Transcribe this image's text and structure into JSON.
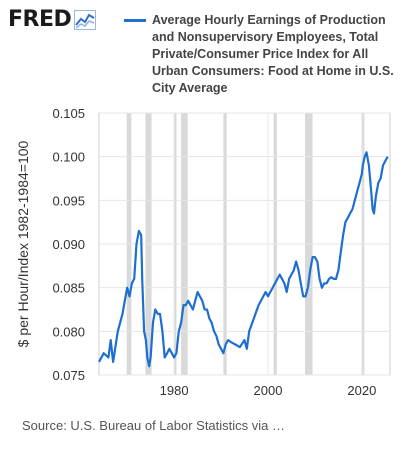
{
  "logo": {
    "text": "FRED",
    "mark_icon": "line-chart-icon"
  },
  "legend": {
    "label": "Average Hourly Earnings of Production and Nonsupervisory Employees, Total Private/Consumer Price Index for All Urban Consumers: Food at Home in U.S. City Average",
    "color": "#1f6fd1"
  },
  "source": "Source: U.S. Bureau of Labor Statistics via …",
  "chart_data": {
    "type": "line",
    "title": "",
    "ylabel": "$ per Hour/Index 1982-1984=100",
    "xlabel": "",
    "xlim": [
      1964,
      2026
    ],
    "ylim": [
      0.075,
      0.105
    ],
    "x_ticks": [
      1980,
      2000,
      2020
    ],
    "x_tick_labels": [
      "1980",
      "2000",
      "2020"
    ],
    "y_ticks": [
      0.075,
      0.08,
      0.085,
      0.09,
      0.095,
      0.1,
      0.105
    ],
    "y_tick_labels": [
      "0.075",
      "0.080",
      "0.085",
      "0.090",
      "0.095",
      "0.100",
      "0.105"
    ],
    "grid": true,
    "recessions": [
      [
        1969.9,
        1970.9
      ],
      [
        1973.9,
        1975.2
      ],
      [
        1980.0,
        1980.5
      ],
      [
        1981.5,
        1982.9
      ],
      [
        1990.5,
        1991.2
      ],
      [
        2001.2,
        2001.9
      ],
      [
        2007.9,
        2009.5
      ],
      [
        2020.1,
        2020.4
      ]
    ],
    "series": [
      {
        "color": "#1f6fd1",
        "x": [
          1964.0,
          1965.0,
          1966.0,
          1966.5,
          1967.0,
          1968.0,
          1969.0,
          1969.5,
          1970.0,
          1970.5,
          1971.0,
          1971.5,
          1972.0,
          1972.5,
          1973.0,
          1973.2,
          1973.6,
          1974.0,
          1974.3,
          1974.7,
          1975.0,
          1975.5,
          1976.0,
          1976.5,
          1977.0,
          1977.5,
          1978.0,
          1978.5,
          1979.0,
          1979.5,
          1980.0,
          1980.5,
          1981.0,
          1981.5,
          1982.0,
          1982.5,
          1983.0,
          1983.5,
          1984.0,
          1984.5,
          1985.0,
          1985.5,
          1986.0,
          1986.5,
          1987.0,
          1987.5,
          1988.0,
          1988.5,
          1989.0,
          1989.5,
          1990.0,
          1990.5,
          1991.0,
          1991.5,
          1992.0,
          1993.0,
          1994.0,
          1995.0,
          1995.5,
          1996.0,
          1997.0,
          1998.0,
          1999.0,
          1999.5,
          2000.0,
          2000.5,
          2001.0,
          2001.5,
          2002.0,
          2002.5,
          2003.0,
          2003.5,
          2004.0,
          2004.5,
          2005.0,
          2005.5,
          2006.0,
          2006.5,
          2007.0,
          2007.5,
          2008.0,
          2008.5,
          2009.0,
          2009.5,
          2010.0,
          2010.5,
          2011.0,
          2011.5,
          2012.0,
          2012.5,
          2013.0,
          2013.5,
          2014.0,
          2014.5,
          2015.0,
          2015.5,
          2016.0,
          2016.5,
          2017.0,
          2017.5,
          2018.0,
          2018.5,
          2019.0,
          2019.5,
          2020.0,
          2020.2,
          2020.6,
          2021.0,
          2021.5,
          2022.0,
          2022.3,
          2022.6,
          2023.0,
          2023.5,
          2024.0,
          2024.5,
          2025.0,
          2025.5
        ],
        "y": [
          0.0765,
          0.0775,
          0.077,
          0.079,
          0.0765,
          0.08,
          0.082,
          0.0835,
          0.085,
          0.084,
          0.0855,
          0.086,
          0.09,
          0.0915,
          0.091,
          0.086,
          0.08,
          0.079,
          0.077,
          0.076,
          0.077,
          0.081,
          0.0825,
          0.082,
          0.082,
          0.08,
          0.077,
          0.0775,
          0.078,
          0.0775,
          0.077,
          0.0775,
          0.08,
          0.081,
          0.083,
          0.083,
          0.0835,
          0.083,
          0.0825,
          0.0835,
          0.0845,
          0.084,
          0.0835,
          0.0825,
          0.0825,
          0.0815,
          0.081,
          0.08,
          0.0795,
          0.0785,
          0.078,
          0.0775,
          0.0785,
          0.079,
          0.0788,
          0.0785,
          0.0782,
          0.079,
          0.078,
          0.08,
          0.0815,
          0.083,
          0.084,
          0.0845,
          0.084,
          0.0845,
          0.085,
          0.0855,
          0.086,
          0.0865,
          0.086,
          0.0855,
          0.0845,
          0.086,
          0.0865,
          0.087,
          0.088,
          0.087,
          0.0855,
          0.084,
          0.084,
          0.085,
          0.087,
          0.0885,
          0.0885,
          0.088,
          0.086,
          0.085,
          0.0855,
          0.0855,
          0.086,
          0.0862,
          0.086,
          0.086,
          0.087,
          0.089,
          0.091,
          0.0925,
          0.093,
          0.0935,
          0.094,
          0.095,
          0.096,
          0.097,
          0.098,
          0.099,
          0.1,
          0.1005,
          0.099,
          0.096,
          0.094,
          0.0935,
          0.0955,
          0.097,
          0.0975,
          0.099,
          0.0995,
          0.1
        ]
      }
    ]
  }
}
